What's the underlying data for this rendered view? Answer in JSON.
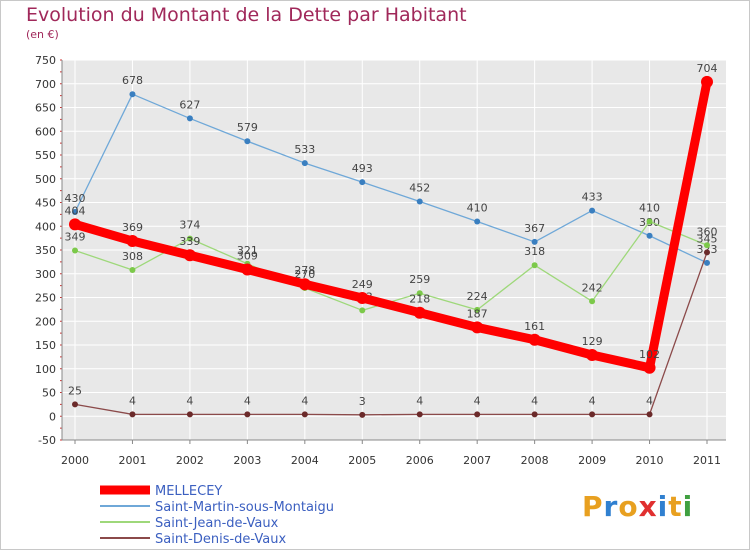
{
  "header": {
    "title": "Evolution du Montant de la Dette par Habitant",
    "unit": "(en €)"
  },
  "logo": {
    "text": "Proxiti",
    "colors": [
      "#e8a020",
      "#3080d0",
      "#e8a020",
      "#e03030",
      "#3080d0",
      "#e8a020",
      "#40a040"
    ]
  },
  "chart_data": {
    "type": "line",
    "x": [
      "2000",
      "2001",
      "2002",
      "2003",
      "2004",
      "2005",
      "2006",
      "2007",
      "2008",
      "2009",
      "2010",
      "2011"
    ],
    "ylim": [
      -50,
      750
    ],
    "yticks": [
      -50,
      0,
      50,
      100,
      150,
      200,
      250,
      300,
      350,
      400,
      450,
      500,
      550,
      600,
      650,
      700,
      750
    ],
    "grid": true,
    "legend_position": "bottom-left",
    "series": [
      {
        "name": "MELLECEY",
        "color": "#ff0000",
        "emphasis": true,
        "values": [
          404,
          369,
          339,
          309,
          278,
          249,
          218,
          187,
          161,
          129,
          102,
          704
        ],
        "labels": [
          "404",
          "369",
          "339",
          "309",
          "278",
          "249",
          "218",
          "187",
          "161",
          "129",
          "102",
          "704"
        ]
      },
      {
        "name": "Saint-Martin-sous-Montaigu",
        "color": "#6fa8d8",
        "marker": "#3a7fc0",
        "values": [
          430,
          678,
          627,
          579,
          533,
          493,
          452,
          410,
          367,
          433,
          380,
          323
        ],
        "labels": [
          "430",
          "678",
          "627",
          "579",
          "533",
          "493",
          "452",
          "410",
          "367",
          "433",
          "380",
          "323"
        ]
      },
      {
        "name": "Saint-Jean-de-Vaux",
        "color": "#9ed87a",
        "marker": "#7cc94a",
        "values": [
          349,
          308,
          374,
          321,
          270,
          223,
          259,
          224,
          318,
          242,
          410,
          360
        ],
        "labels": [
          "349",
          "308",
          "374",
          "321",
          "270",
          "223",
          "259",
          "224",
          "318",
          "242",
          "410",
          "360"
        ]
      },
      {
        "name": "Saint-Denis-de-Vaux",
        "color": "#8b4a4a",
        "marker": "#6b2a2a",
        "values": [
          25,
          4,
          4,
          4,
          4,
          3,
          4,
          4,
          4,
          4,
          4,
          345
        ],
        "labels": [
          "25",
          "4",
          "4",
          "4",
          "4",
          "3",
          "4",
          "4",
          "4",
          "4",
          "4",
          "345"
        ]
      }
    ]
  }
}
